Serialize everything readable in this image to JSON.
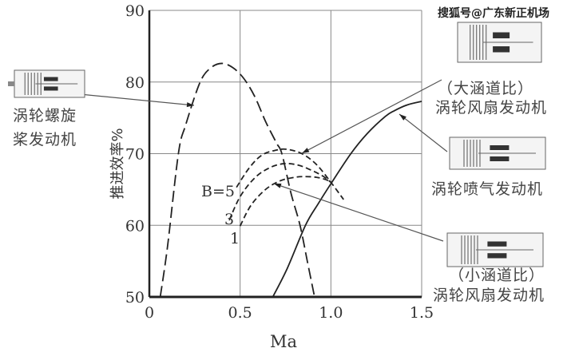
{
  "watermark": "搜狐号@广东新正机场",
  "chart_data": {
    "type": "line",
    "xlabel": "Ma",
    "ylabel": "推进效率%",
    "xlim": [
      0,
      1.5
    ],
    "ylim": [
      50,
      90
    ],
    "xticks": [
      "0",
      "0.5",
      "1.0",
      "1.5"
    ],
    "yticks": [
      "50",
      "60",
      "70",
      "80",
      "90"
    ],
    "grid": true,
    "series": [
      {
        "name": "涡轮螺旋桨发动机",
        "style": "long-dash",
        "x": [
          0.06,
          0.1,
          0.16,
          0.2,
          0.28,
          0.34,
          0.4,
          0.46,
          0.52,
          0.58,
          0.64,
          0.7,
          0.73,
          0.78,
          0.83,
          0.87,
          0.91
        ],
        "y": [
          50,
          57,
          70,
          74,
          80,
          82,
          82.6,
          82,
          80.5,
          78,
          74.5,
          71.5,
          70,
          64.5,
          60,
          55,
          50
        ]
      },
      {
        "name": "涡轮喷气发动机",
        "style": "solid",
        "x": [
          0.68,
          0.76,
          0.86,
          0.93,
          1.0,
          1.11,
          1.2,
          1.3,
          1.35,
          1.42,
          1.5
        ],
        "y": [
          50,
          54,
          60,
          63,
          65.8,
          70,
          72.8,
          75.2,
          76,
          76.8,
          77.3
        ]
      },
      {
        "name": "B=5",
        "style": "dash",
        "x": [
          0.48,
          0.55,
          0.62,
          0.7,
          0.76,
          0.84,
          0.92,
          1.0,
          1.07
        ],
        "y": [
          65.3,
          68,
          69.8,
          70.5,
          70.6,
          70,
          68.5,
          66,
          63.6
        ]
      },
      {
        "name": "3",
        "style": "dash",
        "x": [
          0.44,
          0.5,
          0.58,
          0.66,
          0.74,
          0.82,
          0.9,
          0.96,
          1.0
        ],
        "y": [
          60.7,
          64,
          66.6,
          68,
          68.6,
          68.4,
          67.6,
          66.8,
          66
        ]
      },
      {
        "name": "1",
        "style": "dash",
        "x": [
          0.5,
          0.56,
          0.64,
          0.72,
          0.8,
          0.86,
          0.92,
          0.97,
          1.0
        ],
        "y": [
          59.9,
          62.8,
          65,
          66.2,
          66.7,
          66.8,
          66.7,
          66.4,
          66
        ]
      }
    ],
    "curve_labels": [
      "B=5",
      "3",
      "1"
    ],
    "annotations": {
      "turboprop": [
        "涡轮螺旋",
        "桨发动机"
      ],
      "high_bypass": [
        "（大涵道比）",
        "涡轮风扇发动机"
      ],
      "turbojet": [
        "涡轮喷气发动机"
      ],
      "low_bypass": [
        "（小涵道比）",
        "涡轮风扇发动机"
      ]
    }
  }
}
